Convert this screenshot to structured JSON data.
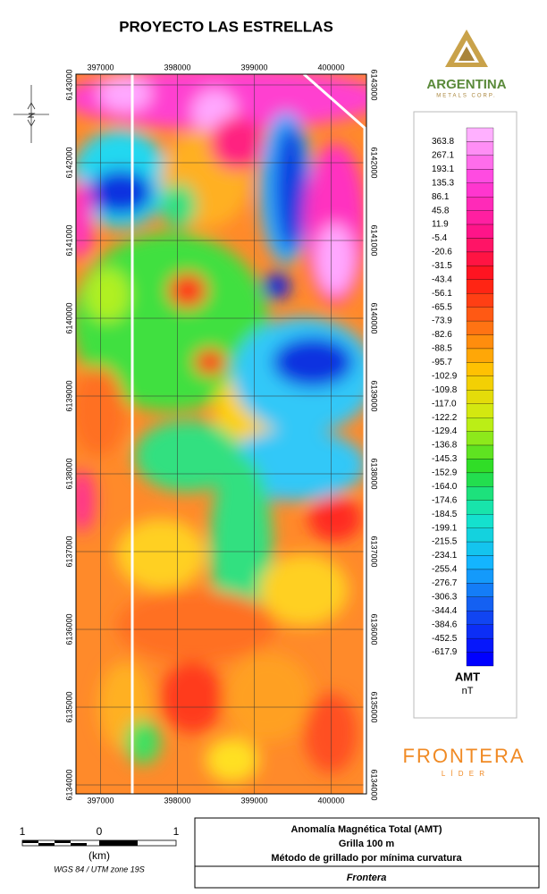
{
  "title": "PROYECTO LAS ESTRELLAS",
  "map": {
    "x_ticks_top": [
      "397000",
      "398000",
      "399000",
      "400000"
    ],
    "x_ticks_bottom": [
      "397000",
      "398000",
      "399000",
      "400000"
    ],
    "y_ticks_left": [
      "6143000",
      "6142000",
      "6141000",
      "6140000",
      "6139000",
      "6138000",
      "6137000",
      "6136000",
      "6135000",
      "6134000"
    ],
    "y_ticks_right": [
      "6143000",
      "6142000",
      "6141000",
      "6140000",
      "6139000",
      "6138000",
      "6137000",
      "6136000",
      "6135000",
      "6134000"
    ]
  },
  "legend": {
    "labels": [
      "363.8",
      "267.1",
      "193.1",
      "135.3",
      "86.1",
      "45.8",
      "11.9",
      "-5.4",
      "-20.6",
      "-31.5",
      "-43.4",
      "-56.1",
      "-65.5",
      "-73.9",
      "-82.6",
      "-88.5",
      "-95.7",
      "-102.9",
      "-109.8",
      "-117.0",
      "-122.2",
      "-129.4",
      "-136.8",
      "-145.3",
      "-152.9",
      "-164.0",
      "-174.6",
      "-184.5",
      "-199.1",
      "-215.5",
      "-234.1",
      "-255.4",
      "-276.7",
      "-306.3",
      "-344.4",
      "-384.6",
      "-452.5",
      "-617.9"
    ],
    "title": "AMT",
    "unit": "nT"
  },
  "logos": {
    "argentina": "ARGENTINA",
    "argentina_sub": "METALS CORP.",
    "frontera": "FRONTERA",
    "frontera_sub": "L Í D E R"
  },
  "scale_bar": {
    "labels": [
      "1",
      "0",
      "1"
    ],
    "unit": "(km)",
    "datum": "WGS 84 / UTM zone 19S"
  },
  "info_box": {
    "lines": [
      "Anomalía Magnética Total (AMT)",
      "Grilla 100 m",
      "Método de grillado por mínima curvatura"
    ],
    "footer": "Frontera"
  }
}
